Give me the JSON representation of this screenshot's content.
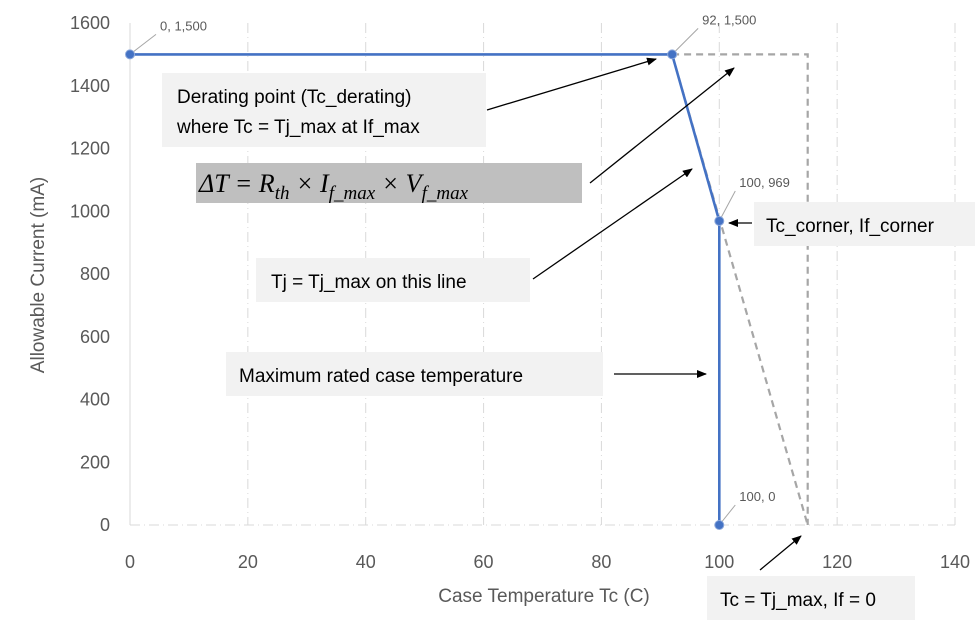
{
  "chart_data": {
    "type": "line",
    "title": "",
    "xlabel": "Case Temperature Tc (C)",
    "ylabel": "Allowable Current (mA)",
    "xlim": [
      0,
      140
    ],
    "ylim": [
      0,
      1600
    ],
    "x_ticks": [
      0,
      20,
      40,
      60,
      80,
      100,
      120,
      140
    ],
    "y_ticks": [
      0,
      200,
      400,
      600,
      800,
      1000,
      1200,
      1400,
      1600
    ],
    "x_tick_labels": [
      "0",
      "20",
      "40",
      "60",
      "80",
      "100",
      "120",
      "140"
    ],
    "y_tick_labels": [
      "0",
      "200",
      "400",
      "600",
      "800",
      "1000",
      "1200",
      "1400",
      "1600"
    ],
    "grid": "vertical",
    "series": [
      {
        "style": "solid",
        "color": "#4472C4",
        "points": [
          [
            0,
            1500
          ],
          [
            92,
            1500
          ],
          [
            100,
            969
          ],
          [
            100,
            0
          ]
        ],
        "point_labels": [
          "0, 1,500",
          "92, 1,500",
          "100, 969",
          "100, 0"
        ]
      },
      {
        "style": "dashed",
        "color": "#A6A6A6",
        "points": [
          [
            92,
            1500
          ],
          [
            115,
            0
          ]
        ]
      },
      {
        "style": "dashed",
        "color": "#A6A6A6",
        "points": [
          [
            92,
            1500
          ],
          [
            115,
            1500
          ],
          [
            115,
            0
          ]
        ]
      }
    ],
    "annotations": {
      "derating_line1": "Derating point (Tc_derating)",
      "derating_line2": "where Tc = Tj_max at If_max",
      "tj_line": "Tj = Tj_max on this line",
      "max_case": "Maximum rated case temperature",
      "corner": "Tc_corner, If_corner",
      "zero": "Tc = Tj_max, If = 0",
      "formula_delta": "ΔT = ",
      "formula_r": "R",
      "formula_r_sub": "th",
      "formula_times": " × ",
      "formula_i": "I",
      "formula_i_sub": "f_max",
      "formula_v": "V",
      "formula_v_sub": "f_max"
    }
  },
  "colors": {
    "series_main": "#4472C4",
    "series_dashed": "#A6A6A6",
    "annotation_box": "#F2F2F2",
    "formula_box": "#BFBFBF"
  }
}
